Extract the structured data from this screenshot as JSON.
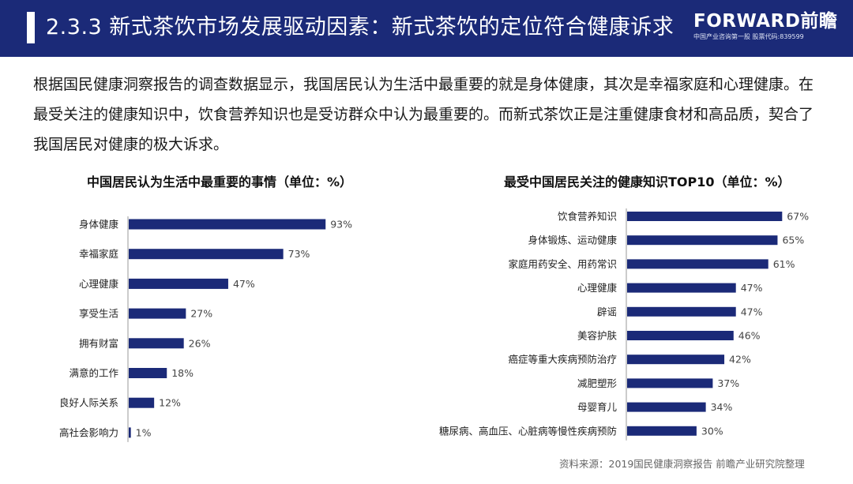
{
  "header": {
    "title": "2.3.3 新式茶饮市场发展驱动因素：新式茶饮的定位符合健康诉求",
    "logo_text": "FORWARD前瞻",
    "logo_tagline": "中国产业咨询第一股 股票代码:839599",
    "bg_color": "#1b2a78"
  },
  "intro_text": "根据国民健康洞察报告的调查数据显示，我国居民认为生活中最重要的就是身体健康，其次是幸福家庭和心理健康。在最受关注的健康知识中，饮食营养知识也是受访群众中认为最重要的。而新式茶饮正是注重健康食材和高品质，契合了我国居民对健康的极大诉求。",
  "source_text": "资料来源：2019国民健康洞察报告 前瞻产业研究院整理",
  "chart_data": [
    {
      "type": "bar",
      "orientation": "horizontal",
      "title": "中国居民认为生活中最重要的事情（单位：%）",
      "categories": [
        "身体健康",
        "幸福家庭",
        "心理健康",
        "享受生活",
        "拥有财富",
        "满意的工作",
        "良好人际关系",
        "高社会影响力"
      ],
      "values": [
        93,
        73,
        47,
        27,
        26,
        18,
        12,
        1
      ],
      "value_suffix": "%",
      "bar_color": "#1b2a78",
      "xlim": [
        0,
        100
      ]
    },
    {
      "type": "bar",
      "orientation": "horizontal",
      "title": "最受中国居民关注的健康知识TOP10（单位：%）",
      "categories": [
        "饮食营养知识",
        "身体锻炼、运动健康",
        "家庭用药安全、用药常识",
        "心理健康",
        "辟谣",
        "美容护肤",
        "癌症等重大疾病预防治疗",
        "减肥塑形",
        "母婴育儿",
        "糖尿病、高血压、心脏病等慢性疾病预防"
      ],
      "values": [
        67,
        65,
        61,
        47,
        47,
        46,
        42,
        37,
        34,
        30
      ],
      "value_suffix": "%",
      "bar_color": "#1b2a78",
      "xlim": [
        0,
        100
      ]
    }
  ]
}
